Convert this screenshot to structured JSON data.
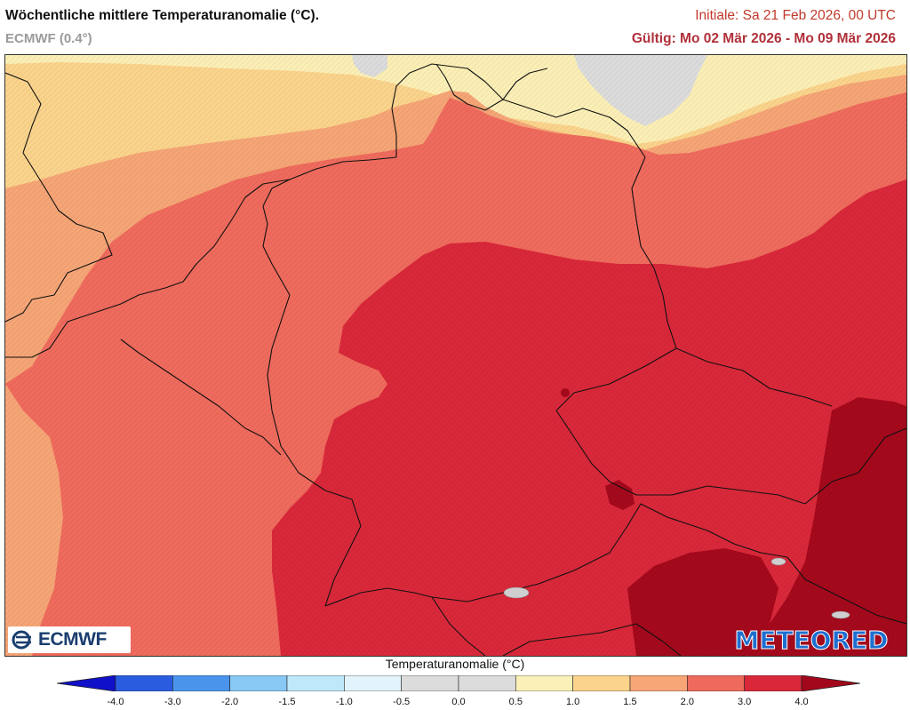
{
  "header": {
    "title": "Wöchentliche mittlere Temperaturanomalie (°C).",
    "model": "ECMWF (0.4°)",
    "initial": "Initiale: Sa 21 Feb 2026, 00 UTC",
    "valid": "Gültig: Mo 02 Mär 2026 - Mo 09 Mär 2026"
  },
  "logos": {
    "left": "ECMWF",
    "right": "METEORED"
  },
  "legend": {
    "title": "Temperaturanomalie (°C)",
    "ticks": [
      "-4.0",
      "-3.0",
      "-2.0",
      "-1.5",
      "-1.0",
      "-0.5",
      "0.0",
      "0.5",
      "1.0",
      "1.5",
      "2.0",
      "3.0",
      "4.0"
    ],
    "colors": [
      "#1010c8",
      "#2a5ce0",
      "#4a94ec",
      "#88c8f4",
      "#bfe8fb",
      "#e2f3fb",
      "#dcdcdc",
      "#dcdcdc",
      "#fbf1b8",
      "#fbd38a",
      "#f6a677",
      "#ee6a5c",
      "#d9283a",
      "#a3071b"
    ]
  },
  "map_colors": {
    "band_05_10": "#fcefb6",
    "band_10_15": "#fbd48c",
    "band_15_20": "#f6a576",
    "band_20_30": "#ef6b5d",
    "band_30_40": "#d9283a",
    "band_40_plus": "#a5091c",
    "neutral": "#dcdcdc",
    "border": "#111111"
  }
}
